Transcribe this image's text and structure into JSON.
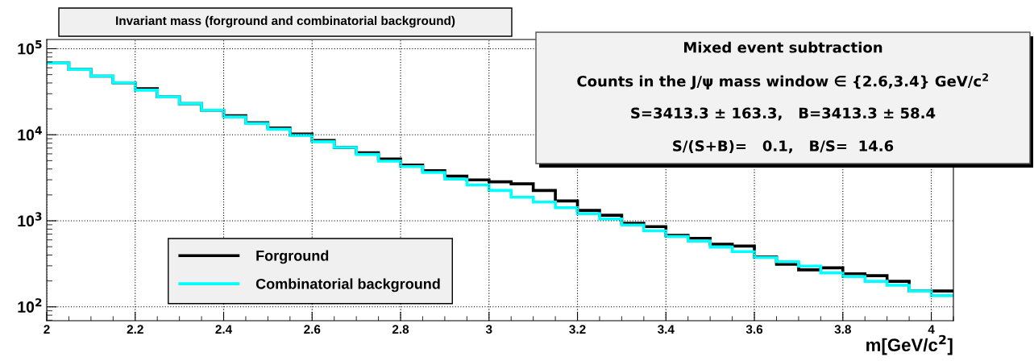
{
  "chart_data": {
    "type": "histogram",
    "title": "Invariant mass (forground and combinatorial background)",
    "xlabel": "m[GeV/c$^{2}$]",
    "bins": [
      2,
      2.05,
      2.1,
      2.15,
      2.2,
      2.25,
      2.3,
      2.35,
      2.4,
      2.45,
      2.5,
      2.55,
      2.6,
      2.65,
      2.7,
      2.75,
      2.8,
      2.85,
      2.9,
      2.95,
      3,
      3.05,
      3.1,
      3.15,
      3.2,
      3.25,
      3.3,
      3.35,
      3.4,
      3.45,
      3.5,
      3.55,
      3.6,
      3.65,
      3.7,
      3.75,
      3.8,
      3.85,
      3.9,
      3.95,
      4,
      4.05
    ],
    "series": [
      {
        "name": "Forground",
        "color": "#000000",
        "values": [
          68200,
          57300,
          48000,
          40200,
          34400,
          27500,
          23000,
          19300,
          16700,
          13800,
          12000,
          10200,
          8600,
          7100,
          6170,
          5240,
          4450,
          3830,
          3300,
          2990,
          2840,
          2690,
          2250,
          1700,
          1320,
          1160,
          938,
          855,
          677,
          626,
          535,
          509,
          380,
          312,
          269,
          284,
          242,
          230,
          198,
          153,
          153
        ]
      },
      {
        "name": "Combinatorial background",
        "color": "#00ffff",
        "values": [
          68200,
          57300,
          48000,
          40200,
          33000,
          27500,
          23000,
          19300,
          16100,
          13500,
          11600,
          9800,
          8300,
          7110,
          5910,
          4940,
          4260,
          3650,
          3050,
          2610,
          2250,
          1880,
          1650,
          1420,
          1210,
          1050,
          893,
          764,
          657,
          582,
          495,
          439,
          375,
          335,
          297,
          248,
          225,
          198,
          178,
          153,
          135
        ]
      }
    ],
    "xlim": [
      2,
      4.05
    ],
    "xticks": [
      2,
      2.2,
      2.4,
      2.6,
      2.8,
      3,
      3.2,
      3.4,
      3.6,
      3.8,
      4
    ],
    "ylim": [
      69,
      128000
    ],
    "yticks": [
      {
        "value": 100,
        "label": "10$^{2}$"
      },
      {
        "value": 1000,
        "label": "10$^{3}$"
      },
      {
        "value": 10000,
        "label": "10$^{4}$"
      },
      {
        "value": 100000,
        "label": "10$^{5}$"
      }
    ],
    "log": true,
    "grid": true,
    "legend": "bottom left",
    "annotations": [
      "Mixed event subtraction",
      "Counts in the J/ψ mass window ∈ {2.6,3.4} GeV/c$^{2}$",
      "S=3413.3 ± 163.3,   B=3413.3 ± 58.4",
      "S/(S+B)=   0.1,   B/S=  14.6"
    ]
  }
}
